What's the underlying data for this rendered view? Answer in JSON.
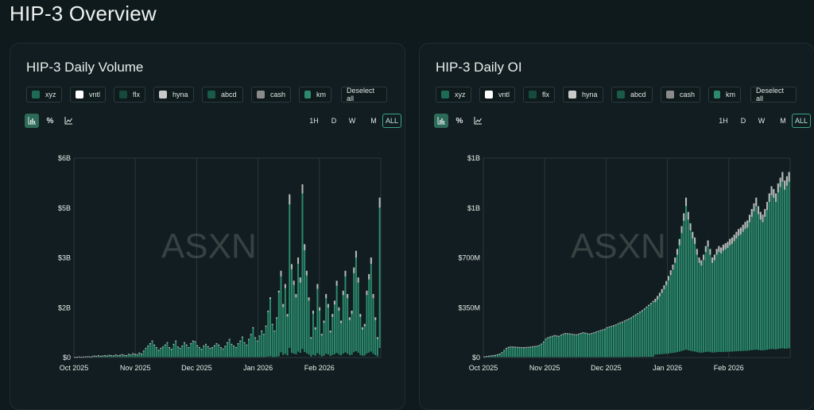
{
  "page_title": "HIP-3 Overview",
  "watermark": "ASXN",
  "legend_items": [
    {
      "label": "xyz",
      "color": "#1e6b55"
    },
    {
      "label": "vntl",
      "color": "#ffffff"
    },
    {
      "label": "flx",
      "color": "#164a3c"
    },
    {
      "label": "hyna",
      "color": "#c9c9c9"
    },
    {
      "label": "abcd",
      "color": "#1a5a48"
    },
    {
      "label": "cash",
      "color": "#8a8a8a"
    },
    {
      "label": "km",
      "color": "#2e8a6e"
    }
  ],
  "deselect_label": "Deselect all",
  "chart_modes": [
    {
      "icon": "bar-chart-icon",
      "label": "bar"
    },
    {
      "icon": "percent-icon",
      "label": "%"
    },
    {
      "icon": "line-chart-icon",
      "label": "line"
    }
  ],
  "ranges": [
    "1H",
    "D",
    "W",
    "M",
    "ALL"
  ],
  "colors": {
    "accent": "#3fa385",
    "bar_main": "#2a8a6c",
    "bar_top": "#b9b9b9",
    "grid": "#2a3739"
  },
  "chart_data": [
    {
      "title": "HIP-3 Daily Volume",
      "type": "bar",
      "stacked": true,
      "y_ticks": [
        "$0",
        "$2B",
        "$3B",
        "$5B",
        "$6B"
      ],
      "y_tick_values": [
        0,
        1.5,
        3,
        4.5,
        6
      ],
      "ylim": [
        0,
        6
      ],
      "x_ticks": [
        "Oct 2025",
        "Nov 2025",
        "Dec 2025",
        "Jan 2026",
        "Feb 2026"
      ],
      "unit": "$B",
      "values": [
        0.01,
        0.01,
        0.02,
        0.01,
        0.02,
        0.02,
        0.03,
        0.02,
        0.03,
        0.05,
        0.04,
        0.06,
        0.04,
        0.05,
        0.06,
        0.05,
        0.07,
        0.06,
        0.05,
        0.08,
        0.06,
        0.07,
        0.09,
        0.07,
        0.06,
        0.1,
        0.08,
        0.12,
        0.1,
        0.09,
        0.14,
        0.11,
        0.2,
        0.28,
        0.35,
        0.42,
        0.5,
        0.38,
        0.3,
        0.22,
        0.28,
        0.32,
        0.38,
        0.45,
        0.3,
        0.25,
        0.4,
        0.5,
        0.32,
        0.28,
        0.35,
        0.45,
        0.38,
        0.3,
        0.42,
        0.5,
        0.48,
        0.36,
        0.3,
        0.25,
        0.35,
        0.4,
        0.33,
        0.28,
        0.3,
        0.36,
        0.42,
        0.38,
        0.3,
        0.26,
        0.34,
        0.45,
        0.55,
        0.4,
        0.35,
        0.3,
        0.42,
        0.5,
        0.62,
        0.45,
        0.38,
        0.55,
        0.7,
        0.9,
        0.6,
        0.5,
        0.65,
        0.8,
        0.7,
        0.95,
        1.4,
        1.8,
        1.0,
        0.8,
        1.2,
        2.0,
        2.6,
        1.6,
        2.2,
        1.3,
        4.9,
        2.8,
        2.3,
        1.9,
        3.0,
        2.4,
        5.2,
        3.4,
        2.6,
        1.8,
        0.6,
        1.4,
        0.9,
        2.2,
        1.5,
        0.7,
        1.1,
        1.9,
        1.6,
        0.8,
        1.3,
        1.7,
        2.3,
        1.5,
        1.1,
        2.0,
        2.6,
        1.9,
        1.2,
        1.4,
        2.7,
        3.2,
        2.4,
        1.3,
        0.9,
        1.0,
        2.0,
        2.5,
        3.0,
        1.9,
        1.2,
        0.6,
        4.8
      ],
      "top_share": [
        0.02,
        0.02,
        0.02,
        0.02,
        0.02,
        0.02,
        0.02,
        0.02,
        0.02,
        0.02,
        0.02,
        0.02,
        0.02,
        0.02,
        0.02,
        0.02,
        0.02,
        0.02,
        0.02,
        0.02,
        0.02,
        0.02,
        0.02,
        0.02,
        0.02,
        0.02,
        0.02,
        0.02,
        0.02,
        0.02,
        0.02,
        0.02,
        0.02,
        0.02,
        0.02,
        0.02,
        0.02,
        0.02,
        0.02,
        0.02,
        0.02,
        0.02,
        0.02,
        0.02,
        0.02,
        0.02,
        0.02,
        0.02,
        0.02,
        0.02,
        0.02,
        0.02,
        0.02,
        0.02,
        0.02,
        0.02,
        0.02,
        0.02,
        0.02,
        0.02,
        0.02,
        0.02,
        0.02,
        0.02,
        0.02,
        0.02,
        0.02,
        0.02,
        0.02,
        0.02,
        0.02,
        0.02,
        0.02,
        0.02,
        0.02,
        0.02,
        0.02,
        0.02,
        0.02,
        0.02,
        0.02,
        0.02,
        0.02,
        0.02,
        0.02,
        0.02,
        0.02,
        0.02,
        0.02,
        0.02,
        0.02,
        0.02,
        0.02,
        0.02,
        0.02,
        0.02,
        0.06,
        0.05,
        0.05,
        0.05,
        0.06,
        0.05,
        0.05,
        0.05,
        0.06,
        0.06,
        0.05,
        0.05,
        0.05,
        0.05,
        0.05,
        0.06,
        0.06,
        0.06,
        0.06,
        0.05,
        0.05,
        0.06,
        0.06,
        0.06,
        0.06,
        0.06,
        0.06,
        0.06,
        0.06,
        0.06,
        0.06,
        0.06,
        0.06,
        0.06,
        0.06,
        0.06,
        0.06,
        0.06,
        0.06,
        0.06,
        0.06,
        0.06,
        0.06,
        0.06,
        0.06,
        0.06,
        0.06
      ]
    },
    {
      "title": "HIP-3 Daily OI",
      "type": "bar",
      "stacked": true,
      "y_ticks": [
        "$0",
        "$350M",
        "$700M",
        "$1B",
        "$1B"
      ],
      "y_tick_values": [
        0,
        350,
        700,
        1050,
        1400
      ],
      "ylim": [
        0,
        1400
      ],
      "x_ticks": [
        "Oct 2025",
        "Nov 2025",
        "Dec 2025",
        "Jan 2026",
        "Feb 2026"
      ],
      "unit": "$M",
      "values": [
        5,
        8,
        10,
        12,
        14,
        16,
        20,
        25,
        35,
        50,
        65,
        72,
        75,
        74,
        73,
        72,
        71,
        70,
        70,
        71,
        72,
        74,
        76,
        78,
        80,
        85,
        95,
        110,
        130,
        140,
        145,
        150,
        155,
        152,
        150,
        158,
        165,
        170,
        168,
        166,
        164,
        162,
        160,
        165,
        170,
        175,
        172,
        168,
        165,
        170,
        175,
        180,
        185,
        190,
        195,
        200,
        210,
        215,
        220,
        225,
        230,
        238,
        245,
        250,
        258,
        265,
        272,
        280,
        290,
        300,
        310,
        320,
        330,
        342,
        355,
        368,
        380,
        395,
        410,
        430,
        452,
        478,
        505,
        535,
        570,
        610,
        650,
        700,
        760,
        830,
        920,
        1010,
        1120,
        1020,
        940,
        880,
        840,
        760,
        700,
        680,
        720,
        780,
        820,
        760,
        700,
        720,
        760,
        780,
        770,
        790,
        800,
        810,
        830,
        840,
        860,
        880,
        900,
        910,
        930,
        950,
        960,
        1000,
        1040,
        1080,
        1120,
        1060,
        1020,
        1000,
        1040,
        1090,
        1150,
        1200,
        1180,
        1150,
        1220,
        1260,
        1300,
        1240,
        1270,
        1300
      ]
    }
  ]
}
